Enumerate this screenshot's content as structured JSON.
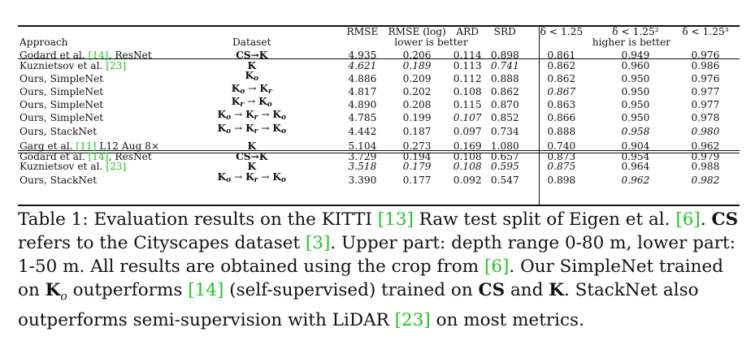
{
  "table": {
    "header": {
      "approach": "Approach",
      "dataset": "Dataset",
      "metrics": [
        "RMSE",
        "RMSE (log)",
        "ARD",
        "SRD",
        "δ < 1.25",
        "δ < 1.25²",
        "δ < 1.25³"
      ],
      "lower_group": "lower is better",
      "higher_group": "higher is better"
    },
    "upper_rows": [
      {
        "approach": "Godard et al. ",
        "cite": "[14]",
        "suffix": ", ResNet",
        "dataset": "CS→K",
        "values": [
          "4.935",
          "0.206",
          "0.114",
          "0.898",
          "0.861",
          "0.949",
          "0.976"
        ],
        "style": [
          "",
          "",
          "",
          "",
          "",
          "",
          ""
        ]
      },
      {
        "approach": "Kuznietsov et al. ",
        "cite": "[23]",
        "suffix": "",
        "dataset": "K",
        "values": [
          "4.621",
          "0.189",
          "0.113",
          "0.741",
          "0.862",
          "0.960",
          "0.986"
        ],
        "style": [
          "i",
          "i",
          "",
          "i",
          "",
          "b",
          "b"
        ]
      },
      {
        "approach": "Ours, SimpleNet",
        "cite": "",
        "suffix": "",
        "dataset": "K_o",
        "values": [
          "4.886",
          "0.209",
          "0.112",
          "0.888",
          "0.862",
          "0.950",
          "0.976"
        ],
        "style": [
          "",
          "",
          "",
          "",
          "",
          "",
          ""
        ]
      },
      {
        "approach": "Ours, SimpleNet",
        "cite": "",
        "suffix": "",
        "dataset": "K_o → K_r",
        "values": [
          "4.817",
          "0.202",
          "0.108",
          "0.862",
          "0.867",
          "0.950",
          "0.977"
        ],
        "style": [
          "",
          "",
          "",
          "",
          "i",
          "",
          ""
        ]
      },
      {
        "approach": "Ours, SimpleNet",
        "cite": "",
        "suffix": "",
        "dataset": "K_r → K_o",
        "values": [
          "4.890",
          "0.208",
          "0.115",
          "0.870",
          "0.863",
          "0.950",
          "0.977"
        ],
        "style": [
          "",
          "",
          "",
          "",
          "",
          "",
          ""
        ]
      },
      {
        "approach": "Ours, SimpleNet",
        "cite": "",
        "suffix": "",
        "dataset": "K_o → K_r → K_o",
        "values": [
          "4.785",
          "0.199",
          "0.107",
          "0.852",
          "0.866",
          "0.950",
          "0.978"
        ],
        "style": [
          "",
          "",
          "i",
          "",
          "",
          "",
          ""
        ]
      },
      {
        "approach": "Ours, StackNet",
        "cite": "",
        "suffix": "",
        "dataset": "K_o → K_r → K_o",
        "values": [
          "4.442",
          "0.187",
          "0.097",
          "0.734",
          "0.888",
          "0.958",
          "0.980"
        ],
        "style": [
          "b",
          "b",
          "b",
          "b",
          "b",
          "i",
          "i"
        ]
      }
    ],
    "lower_rows": [
      {
        "approach": "Garg et al. ",
        "cite": "[11]",
        "suffix": " L12 Aug 8×",
        "dataset": "K",
        "values": [
          "5.104",
          "0.273",
          "0.169",
          "1.080",
          "0.740",
          "0.904",
          "0.962"
        ],
        "style": [
          "",
          "",
          "",
          "",
          "",
          "",
          ""
        ]
      },
      {
        "approach": "Godard et al. ",
        "cite": "[14]",
        "suffix": ", ResNet",
        "dataset": "CS→K",
        "values": [
          "3.729",
          "0.194",
          "0.108",
          "0.657",
          "0.873",
          "0.954",
          "0.979"
        ],
        "style": [
          "",
          "",
          "",
          "",
          "",
          "",
          ""
        ]
      },
      {
        "approach": "Kuznietsov et al. ",
        "cite": "[23]",
        "suffix": "",
        "dataset": "K",
        "values": [
          "3.518",
          "0.179",
          "0.108",
          "0.595",
          "0.875",
          "0.964",
          "0.988"
        ],
        "style": [
          "i",
          "i",
          "i",
          "i",
          "i",
          "b",
          "b"
        ]
      },
      {
        "approach": "Ours, StackNet",
        "cite": "",
        "suffix": "",
        "dataset": "K_o → K_r → K_o",
        "values": [
          "3.390",
          "0.177",
          "0.092",
          "0.547",
          "0.898",
          "0.962",
          "0.982"
        ],
        "style": [
          "b",
          "b",
          "b",
          "b",
          "b",
          "i",
          "i"
        ]
      }
    ]
  },
  "caption": {
    "label": "Table 1: ",
    "p1": "Evaluation results on the KITTI ",
    "c1": "[13]",
    "p2": " Raw test split of Eigen et al. ",
    "c2": "[6]",
    "p3": ". ",
    "cs": "CS",
    "p4": " refers to the Cityscapes dataset ",
    "c3": "[3]",
    "p5": ". Upper part: depth range 0-80 m, lower part: 1-50 m. All results are obtained using the crop from ",
    "c4": "[6]",
    "p6": ". Our SimpleNet trained on ",
    "ko_base": "K",
    "ko_sub": "o",
    "p7": " outperforms ",
    "c5": "[14]",
    "p8": " (self-supervised) trained on ",
    "cs2": "CS",
    "p9": " and ",
    "k": "K",
    "p10": ". StackNet also outperforms semi-supervision with LiDAR ",
    "c6": "[23]",
    "p11": " on most metrics."
  }
}
